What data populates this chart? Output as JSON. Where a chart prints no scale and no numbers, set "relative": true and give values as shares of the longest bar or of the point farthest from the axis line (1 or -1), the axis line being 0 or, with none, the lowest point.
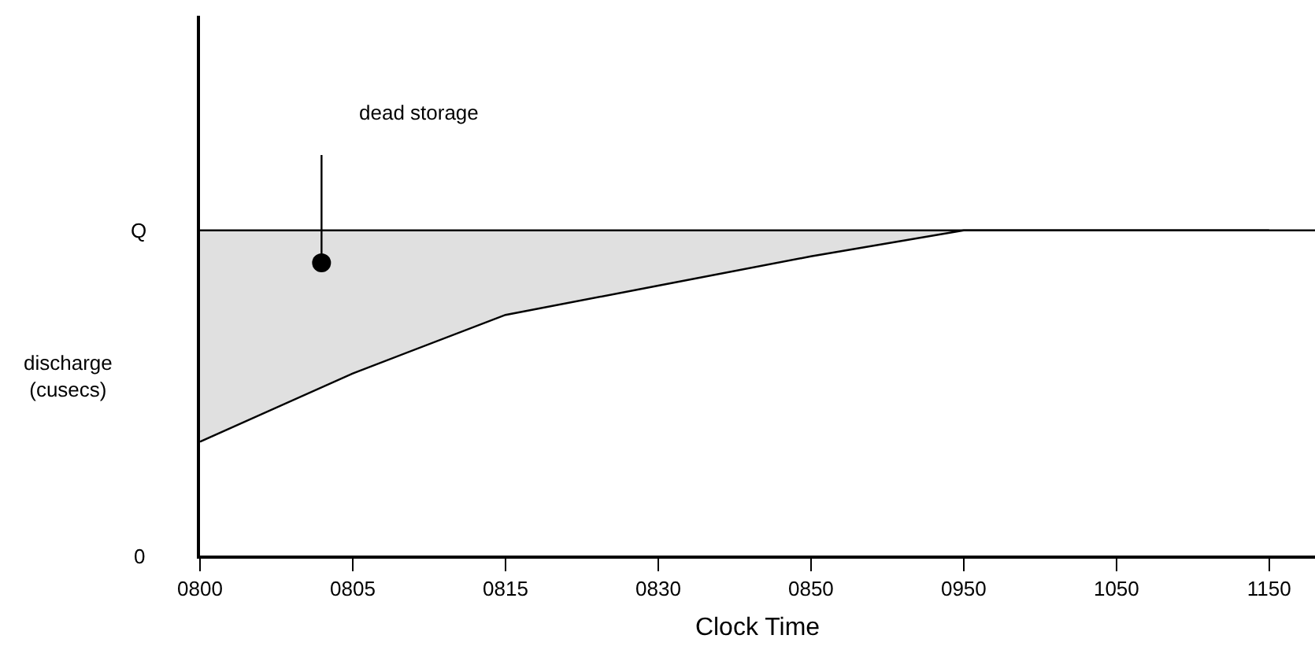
{
  "chart_data": {
    "type": "line",
    "xlabel": "Clock Time",
    "ylabel": "discharge\n(cusecs)",
    "categories": [
      "0800",
      "0805",
      "0815",
      "0830",
      "0850",
      "0950",
      "1050",
      "1150"
    ],
    "series": [
      {
        "color": "#000000",
        "values": [
          0.35,
          0.56,
          0.74,
          0.83,
          0.92,
          1,
          1,
          1
        ],
        "lower": [
          0.35,
          0.56,
          0.74,
          0.83,
          0.92,
          1,
          1,
          1
        ],
        "upper": [
          1,
          1,
          1,
          1,
          1,
          1,
          1,
          1
        ]
      }
    ],
    "relative": true,
    "ref_lines": [
      {
        "axis": "y",
        "value": 1,
        "color": "#000000"
      }
    ],
    "annotations": [
      "dead storage",
      "Q",
      "0"
    ]
  }
}
